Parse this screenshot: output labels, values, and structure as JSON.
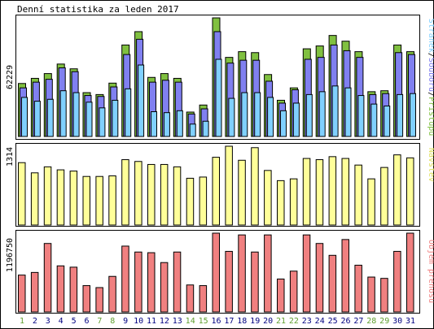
{
  "chart_data": {
    "type": "bar",
    "title": "Denní statistika za leden 2017",
    "categories": [
      "1",
      "2",
      "3",
      "4",
      "5",
      "6",
      "7",
      "8",
      "9",
      "10",
      "11",
      "12",
      "13",
      "14",
      "15",
      "16",
      "17",
      "18",
      "19",
      "20",
      "21",
      "22",
      "23",
      "24",
      "25",
      "26",
      "27",
      "28",
      "29",
      "30",
      "31"
    ],
    "weekend_days": [
      "1",
      "7",
      "8",
      "14",
      "15",
      "21",
      "22",
      "28",
      "29"
    ],
    "colors": {
      "pristupy": "#80c040",
      "soubory": "#8080f0",
      "stranky": "#80d0ff",
      "navstevy": "#ffff99",
      "objem": "#f08080",
      "weekend_label": "#60a030",
      "weekday_label": "#000080",
      "frame": "#000000"
    },
    "panels": [
      {
        "id": "top",
        "max_label": "62229",
        "ymax": 62229,
        "legend": {
          "stranky": "Stránek",
          "sep1": "/",
          "soubory": "Souborů",
          "sep2": "/",
          "pristupy": "Přístupů"
        },
        "series": [
          {
            "key": "pristupy",
            "name": "Přístupů",
            "values": [
              27800,
              30500,
              33000,
              38000,
              35500,
              23000,
              22000,
              28000,
              48000,
              55000,
              31000,
              33000,
              30500,
              12800,
              16500,
              62229,
              41500,
              44500,
              44000,
              32500,
              19000,
              25500,
              46000,
              47500,
              53000,
              50000,
              44500,
              23500,
              24000,
              48000,
              44500
            ]
          },
          {
            "key": "soubory",
            "name": "Souborů",
            "values": [
              25500,
              28500,
              30000,
              36000,
              34000,
              21500,
              21000,
              26000,
              43000,
              51000,
              28500,
              29500,
              28500,
              11800,
              14500,
              55000,
              38500,
              40000,
              40000,
              29000,
              17500,
              24500,
              40500,
              41500,
              48000,
              45000,
              41500,
              22000,
              22500,
              44000,
              43000
            ]
          },
          {
            "key": "stranky",
            "name": "Stránek",
            "values": [
              20500,
              18500,
              19500,
              24000,
              23000,
              18000,
              15000,
              19000,
              25000,
              37500,
              13000,
              12500,
              13500,
              6500,
              8000,
              40500,
              20000,
              23000,
              23000,
              20500,
              13500,
              17500,
              22000,
              23500,
              26500,
              25500,
              21500,
              17000,
              16000,
              22000,
              22500
            ]
          }
        ]
      },
      {
        "id": "mid",
        "max_label": "1314",
        "ymax": 1314,
        "legend": {
          "navstevy": "Návštěv"
        },
        "series": [
          {
            "key": "navstevy",
            "name": "Návštěv",
            "values": [
              1040,
              870,
              970,
              920,
              900,
              810,
              810,
              820,
              1090,
              1060,
              1010,
              1010,
              970,
              780,
              800,
              1130,
              1314,
              1080,
              1290,
              910,
              740,
              770,
              1110,
              1090,
              1140,
              1110,
              1000,
              770,
              960,
              1170,
              1120
            ]
          }
        ]
      },
      {
        "id": "bot",
        "max_label": "1196750",
        "ymax": 1196750,
        "legend": {
          "objem": "Objem přenosu"
        },
        "series": [
          {
            "key": "objem",
            "name": "Objem přenosu",
            "values": [
              560000,
              600000,
              1040000,
              700000,
              680000,
              400000,
              370000,
              540000,
              1000000,
              910000,
              900000,
              750000,
              910000,
              410000,
              400000,
              1196750,
              920000,
              1170000,
              910000,
              1170000,
              500000,
              620000,
              1170000,
              1040000,
              860000,
              1100000,
              710000,
              530000,
              510000,
              920000,
              1196750
            ]
          }
        ]
      }
    ]
  }
}
